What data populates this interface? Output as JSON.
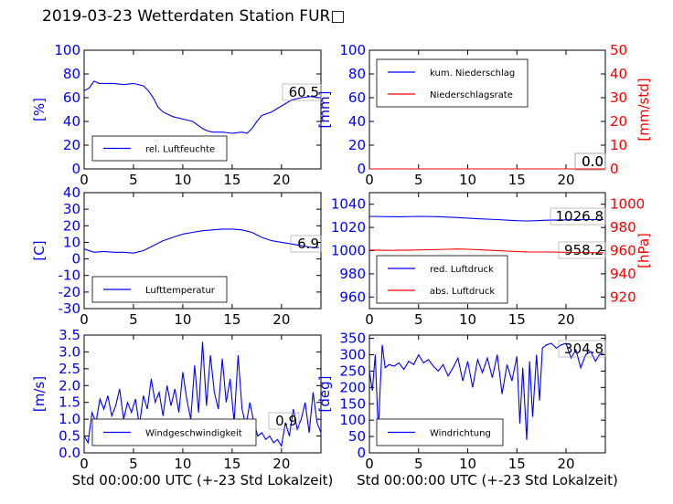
{
  "page": {
    "title": "2019-03-23 Wetterdaten Station FUR□"
  },
  "colors": {
    "blue": "#0000ff",
    "red": "#ff0000",
    "black": "#000000"
  },
  "chart_data": [
    {
      "id": "humidity",
      "type": "line",
      "ylabel": "[%]",
      "ylim": [
        0,
        100
      ],
      "yticks": [
        0,
        20,
        40,
        60,
        80,
        100
      ],
      "xlim": [
        0,
        24
      ],
      "xticks": [
        0,
        5,
        10,
        15,
        20
      ],
      "legend": "bottom-left",
      "series": [
        {
          "name": "rel. Luftfeuchte",
          "color": "#0000ff",
          "x": [
            0,
            0.5,
            1,
            1.5,
            2,
            3,
            4,
            5,
            6,
            6.5,
            7,
            7.5,
            8,
            8.5,
            9,
            10,
            11,
            12,
            12.5,
            13,
            14,
            15,
            16,
            16.5,
            17,
            17.5,
            18,
            19,
            20,
            21,
            22,
            23,
            23.8
          ],
          "y": [
            66,
            68,
            74,
            72,
            72,
            72,
            71,
            72,
            70,
            66,
            60,
            52,
            48,
            46,
            44,
            42,
            40,
            34,
            32,
            31,
            31,
            30,
            31,
            30,
            34,
            40,
            45,
            48,
            53,
            58,
            60,
            61,
            60
          ]
        }
      ],
      "annotation": "60.5"
    },
    {
      "id": "precip",
      "type": "line",
      "ylabel": "[mm]",
      "ylim": [
        0,
        100
      ],
      "yticks": [
        0,
        20,
        40,
        60,
        80,
        100
      ],
      "ylabel2": "[mm/std]",
      "ylim2": [
        0,
        50
      ],
      "yticks2": [
        0,
        10,
        20,
        30,
        40,
        50
      ],
      "xlim": [
        0,
        24
      ],
      "xticks": [
        0,
        5,
        10,
        15,
        20
      ],
      "legend": "top-left",
      "series": [
        {
          "name": "kum. Niederschlag",
          "color": "#0000ff",
          "axis": "left",
          "x": [
            0,
            24
          ],
          "y": [
            0,
            0
          ]
        },
        {
          "name": "Niederschlagsrate",
          "color": "#ff0000",
          "axis": "right",
          "x": [
            0,
            24
          ],
          "y": [
            0,
            0
          ]
        }
      ],
      "annotation": "0.0",
      "annotation2": "0.0"
    },
    {
      "id": "temperature",
      "type": "line",
      "ylabel": "[C]",
      "ylim": [
        -30,
        40
      ],
      "yticks": [
        -30,
        -20,
        -10,
        0,
        10,
        20,
        30,
        40
      ],
      "xlim": [
        0,
        24
      ],
      "xticks": [
        0,
        5,
        10,
        15,
        20
      ],
      "legend": "bottom-left",
      "series": [
        {
          "name": "Lufttemperatur",
          "color": "#0000ff",
          "x": [
            0,
            1,
            2,
            3,
            4,
            5,
            6,
            7,
            8,
            9,
            10,
            11,
            12,
            13,
            14,
            15,
            16,
            17,
            18,
            19,
            20,
            21,
            22,
            23,
            23.8
          ],
          "y": [
            6,
            4,
            4.5,
            4,
            4,
            3.5,
            5,
            8,
            11,
            13,
            15,
            16,
            17,
            17.5,
            18,
            18,
            17.5,
            16,
            13,
            11,
            10,
            9,
            8,
            7,
            6.9
          ]
        }
      ],
      "annotation": "6.9"
    },
    {
      "id": "pressure",
      "type": "line",
      "ylim": [
        950,
        1050
      ],
      "yticks": [
        960,
        980,
        1000,
        1020,
        1040
      ],
      "ylabel2": "[hPa]",
      "ylim2": [
        910,
        1010
      ],
      "yticks2": [
        920,
        940,
        960,
        980,
        1000
      ],
      "xlim": [
        0,
        24
      ],
      "xticks": [
        0,
        5,
        10,
        15,
        20
      ],
      "legend": "bottom-left",
      "series": [
        {
          "name": "red. Luftdruck",
          "color": "#0000ff",
          "axis": "left",
          "x": [
            0,
            3,
            5,
            7,
            9,
            11,
            13,
            15,
            16,
            17,
            18,
            20,
            22,
            23.8
          ],
          "y": [
            1029.5,
            1029.2,
            1029.5,
            1029.3,
            1028.5,
            1027.5,
            1026.8,
            1025.8,
            1025.6,
            1025.8,
            1026.2,
            1026.5,
            1026.8,
            1026.8
          ]
        },
        {
          "name": "abs. Luftdruck",
          "color": "#ff0000",
          "axis": "right",
          "x": [
            0,
            2,
            4,
            6,
            8,
            9,
            10,
            12,
            14,
            16,
            18,
            20,
            22,
            23.8
          ],
          "y": [
            960.5,
            960.2,
            960.5,
            960.8,
            961.2,
            961.4,
            961.2,
            960.5,
            959.6,
            958.9,
            958.8,
            958.6,
            958.3,
            958.2
          ]
        }
      ],
      "annotation": "1026.8",
      "annotation2": "958.2"
    },
    {
      "id": "windspeed",
      "type": "line",
      "ylabel": "[m/s]",
      "ylim": [
        0,
        3.5
      ],
      "yticks": [
        0.0,
        0.5,
        1.0,
        1.5,
        2.0,
        2.5,
        3.0,
        3.5
      ],
      "xlim": [
        0,
        24
      ],
      "xticks": [
        0,
        5,
        10,
        15,
        20
      ],
      "xlabel": "Std 00:00:00 UTC (+-23 Std Lokalzeit)",
      "legend": "bottom-left",
      "series": [
        {
          "name": "Windgeschwindigkeit",
          "color": "#0000ff",
          "x": [
            0,
            0.4,
            0.8,
            1.2,
            1.6,
            2,
            2.4,
            2.8,
            3.2,
            3.6,
            4,
            4.4,
            4.8,
            5.2,
            5.6,
            6,
            6.4,
            6.8,
            7.2,
            7.6,
            8,
            8.4,
            8.8,
            9.2,
            9.6,
            10,
            10.4,
            10.8,
            11.2,
            11.6,
            12,
            12.4,
            12.8,
            13.2,
            13.6,
            14,
            14.4,
            14.8,
            15.2,
            15.6,
            16,
            16.4,
            16.8,
            17.2,
            17.6,
            18,
            18.4,
            18.8,
            19.2,
            19.6,
            20,
            20.4,
            20.8,
            21.2,
            21.6,
            22,
            22.4,
            22.8,
            23.2,
            23.6,
            24
          ],
          "y": [
            0.5,
            0.3,
            1.2,
            0.9,
            1.6,
            1.3,
            1.7,
            1.1,
            1.4,
            1.9,
            1.0,
            1.5,
            1.2,
            1.6,
            0.8,
            1.7,
            1.3,
            2.2,
            1.5,
            1.8,
            1.1,
            2.0,
            1.4,
            1.9,
            1.2,
            2.4,
            1.6,
            1.0,
            2.6,
            1.2,
            3.3,
            1.4,
            2.9,
            1.8,
            1.3,
            2.8,
            1.5,
            2.2,
            0.9,
            2.9,
            1.3,
            0.8,
            1.5,
            0.9,
            0.5,
            0.6,
            0.4,
            0.5,
            0.3,
            0.4,
            0.2,
            0.9,
            0.5,
            1.3,
            0.7,
            1.0,
            1.5,
            0.6,
            1.8,
            0.9,
            0.6
          ]
        }
      ],
      "annotation": "0.9"
    },
    {
      "id": "winddir",
      "type": "line",
      "ylabel": "[deg]",
      "ylim": [
        0,
        360
      ],
      "yticks": [
        0,
        50,
        100,
        150,
        200,
        250,
        300,
        350
      ],
      "xlim": [
        0,
        24
      ],
      "xticks": [
        0,
        5,
        10,
        15,
        20
      ],
      "xlabel": "Std 00:00:00 UTC (+-23 Std Lokalzeit)",
      "legend": "bottom-left",
      "series": [
        {
          "name": "Windrichtung",
          "color": "#0000ff",
          "x": [
            0,
            0.3,
            0.6,
            0.9,
            1.1,
            1.3,
            1.6,
            2,
            2.5,
            3,
            3.5,
            4,
            4.5,
            5,
            5.5,
            6,
            6.5,
            7,
            7.5,
            8,
            8.5,
            9,
            9.5,
            10,
            10.5,
            11,
            11.5,
            12,
            12.5,
            13,
            13.5,
            14,
            14.5,
            15,
            15.3,
            15.6,
            16,
            16.3,
            16.6,
            17,
            17.3,
            17.6,
            18,
            18.5,
            19,
            19.5,
            20,
            20.5,
            21,
            21.5,
            22,
            22.5,
            23,
            23.4,
            23.8
          ],
          "y": [
            250,
            190,
            300,
            60,
            200,
            330,
            260,
            270,
            265,
            275,
            255,
            280,
            270,
            300,
            275,
            285,
            265,
            250,
            270,
            235,
            260,
            290,
            220,
            280,
            200,
            285,
            245,
            290,
            230,
            300,
            180,
            270,
            220,
            295,
            90,
            260,
            40,
            280,
            110,
            300,
            160,
            320,
            330,
            335,
            320,
            330,
            335,
            290,
            315,
            260,
            300,
            310,
            280,
            300,
            305
          ]
        }
      ],
      "annotation": "304.8"
    }
  ]
}
